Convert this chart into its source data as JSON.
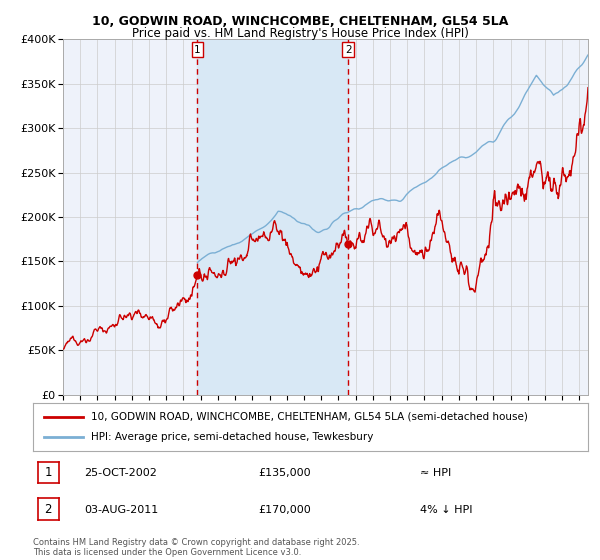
{
  "title_line1": "10, GODWIN ROAD, WINCHCOMBE, CHELTENHAM, GL54 5LA",
  "title_line2": "Price paid vs. HM Land Registry's House Price Index (HPI)",
  "legend_label1": "10, GODWIN ROAD, WINCHCOMBE, CHELTENHAM, GL54 5LA (semi-detached house)",
  "legend_label2": "HPI: Average price, semi-detached house, Tewkesbury",
  "transaction1_date": "25-OCT-2002",
  "transaction1_price": "£135,000",
  "transaction1_rel": "≈ HPI",
  "transaction2_date": "03-AUG-2011",
  "transaction2_price": "£170,000",
  "transaction2_rel": "4% ↓ HPI",
  "footnote": "Contains HM Land Registry data © Crown copyright and database right 2025.\nThis data is licensed under the Open Government Licence v3.0.",
  "red_line_color": "#cc0000",
  "blue_line_color": "#7bafd4",
  "background_color": "#ffffff",
  "plot_bg_color": "#eef2fa",
  "shaded_region_color": "#d8e8f5",
  "grid_color": "#cccccc",
  "vline_color": "#cc0000",
  "transaction1_x": 2002.81,
  "transaction2_x": 2011.58,
  "ylim_min": 0,
  "ylim_max": 400000,
  "xlim_min": 1995.0,
  "xlim_max": 2025.5,
  "hpi_start_x": 2002.81
}
